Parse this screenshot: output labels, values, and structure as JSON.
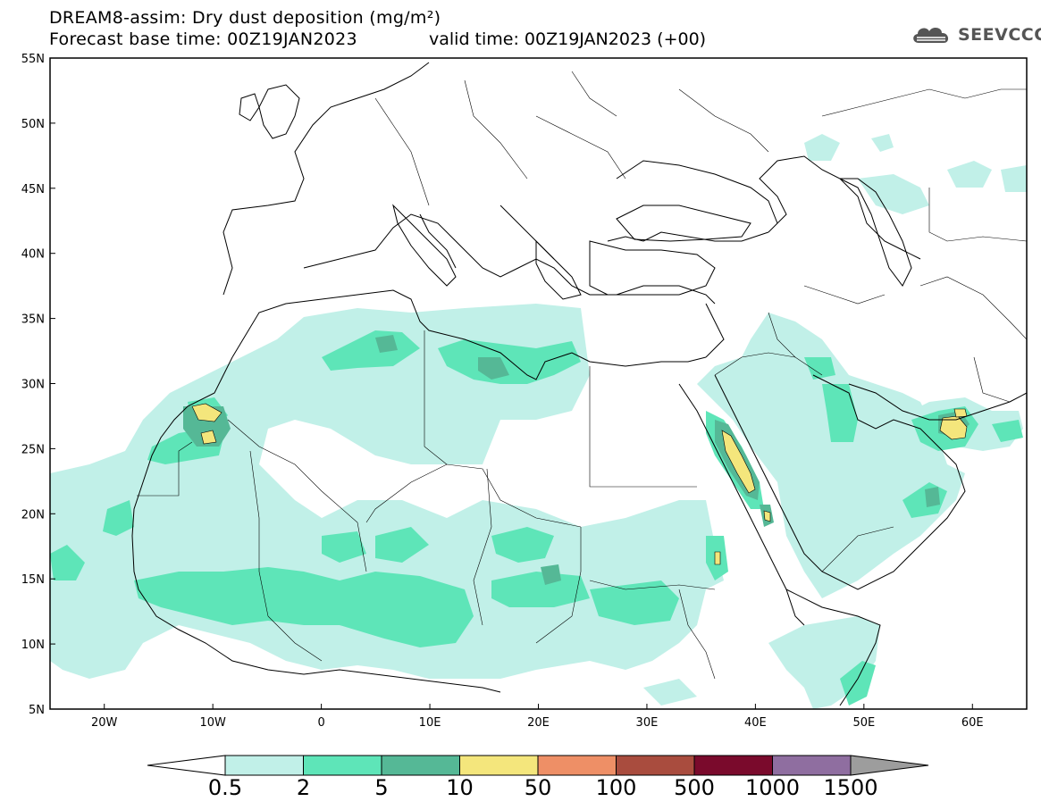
{
  "header": {
    "title_line1": "DREAM8-assim: Dry dust deposition (mg/m²)",
    "title_line2": "Forecast base time: 00Z19JAN2023",
    "valid_time": "valid time: 00Z19JAN2023 (+00)"
  },
  "logo": {
    "icon": "cloud-icon",
    "text": "SEEVCCC"
  },
  "map": {
    "lon_range": [
      -25,
      65
    ],
    "lat_range": [
      5,
      55
    ],
    "lon_ticks": [
      {
        "value": -20,
        "label": "20W"
      },
      {
        "value": -10,
        "label": "10W"
      },
      {
        "value": 0,
        "label": "0"
      },
      {
        "value": 10,
        "label": "10E"
      },
      {
        "value": 20,
        "label": "20E"
      },
      {
        "value": 30,
        "label": "30E"
      },
      {
        "value": 40,
        "label": "40E"
      },
      {
        "value": 50,
        "label": "50E"
      },
      {
        "value": 60,
        "label": "60E"
      }
    ],
    "lat_ticks": [
      {
        "value": 55,
        "label": "55N"
      },
      {
        "value": 50,
        "label": "50N"
      },
      {
        "value": 45,
        "label": "45N"
      },
      {
        "value": 40,
        "label": "40N"
      },
      {
        "value": 35,
        "label": "35N"
      },
      {
        "value": 30,
        "label": "30N"
      },
      {
        "value": 25,
        "label": "25N"
      },
      {
        "value": 20,
        "label": "20N"
      },
      {
        "value": 15,
        "label": "15N"
      },
      {
        "value": 10,
        "label": "10N"
      },
      {
        "value": 5,
        "label": "5N"
      }
    ]
  },
  "colorbar": {
    "levels": [
      "0.5",
      "2",
      "5",
      "10",
      "50",
      "100",
      "500",
      "1000",
      "1500"
    ],
    "colors": [
      "#c1f0e8",
      "#5ee5b8",
      "#55b896",
      "#f4e67c",
      "#ee8f66",
      "#a94c3e",
      "#7a0a2c",
      "#8f6ea0",
      "#9d9d9d"
    ],
    "under_color": "#ffffff",
    "over_color": "#9d9d9d"
  },
  "levels_colors": {
    "l1": "#c1f0e8",
    "l2": "#5ee5b8",
    "l3": "#55b896",
    "l4": "#f4e67c"
  }
}
